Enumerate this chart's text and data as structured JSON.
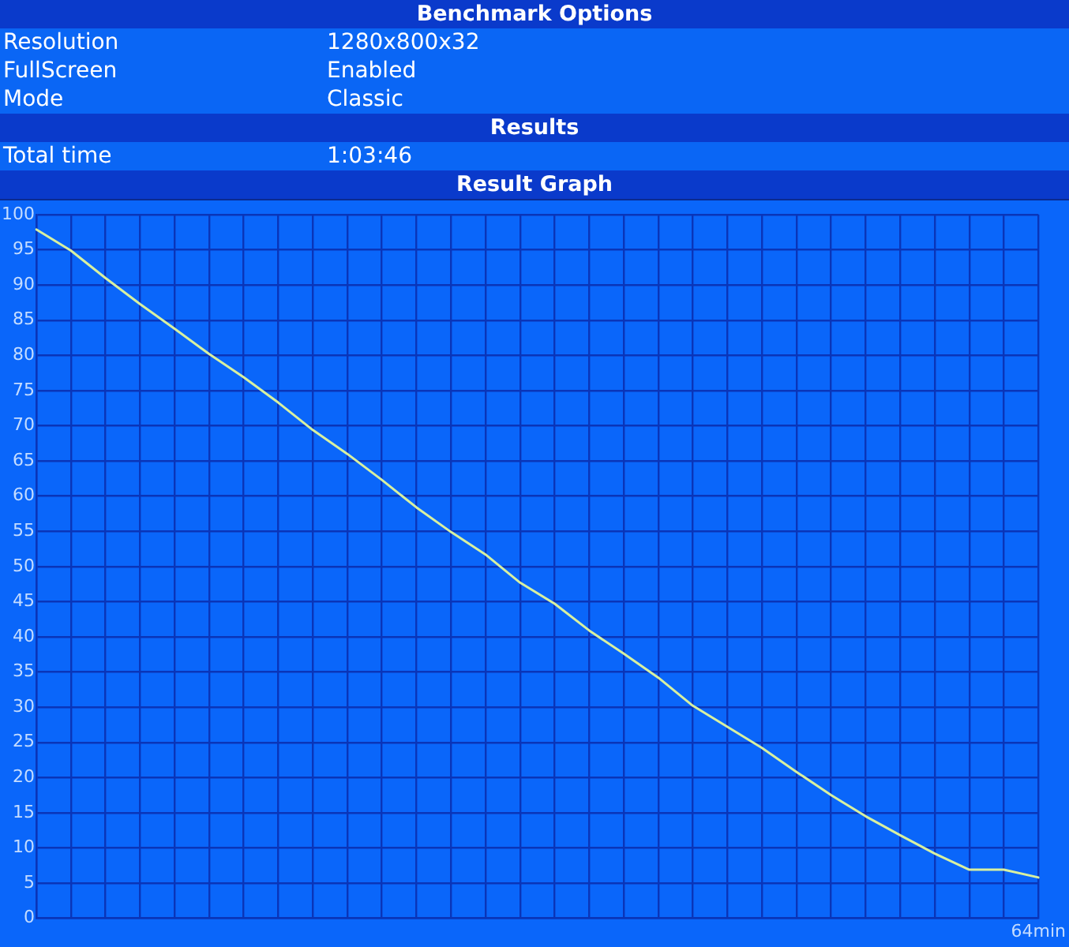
{
  "chart_data": {
    "type": "line",
    "title": "Result Graph",
    "annotations": [
      "Benchmark Options",
      "Resolution",
      "1280x800x32",
      "FullScreen",
      "Enabled",
      "Mode",
      "Classic",
      "Results",
      "Total time",
      "1:03:46"
    ],
    "categories": [
      null,
      null,
      null,
      null,
      null,
      null,
      null,
      null,
      null,
      null,
      null,
      null,
      null,
      null,
      null,
      null,
      null,
      null,
      null,
      null,
      null,
      null,
      null,
      null,
      null,
      null,
      null,
      null,
      null,
      "64min"
    ],
    "values": [
      97.9,
      94.9,
      91.0,
      87.3,
      83.8,
      80.2,
      76.9,
      73.3,
      69.4,
      66.0,
      62.3,
      58.4,
      54.9,
      51.7,
      47.7,
      44.7,
      40.9,
      37.6,
      34.2,
      30.2,
      27.2,
      24.2,
      20.8,
      17.5,
      14.5,
      11.8,
      9.2,
      6.9,
      6.9,
      5.8
    ],
    "color": "#d8f0a0",
    "ylim": [
      0,
      100
    ],
    "yticks": [
      0,
      5,
      10,
      15,
      20,
      25,
      30,
      35,
      40,
      45,
      50,
      55,
      60,
      65,
      70,
      75,
      80,
      85,
      90,
      95,
      100
    ],
    "grid": true,
    "marker": "none",
    "line_style": "solid"
  }
}
